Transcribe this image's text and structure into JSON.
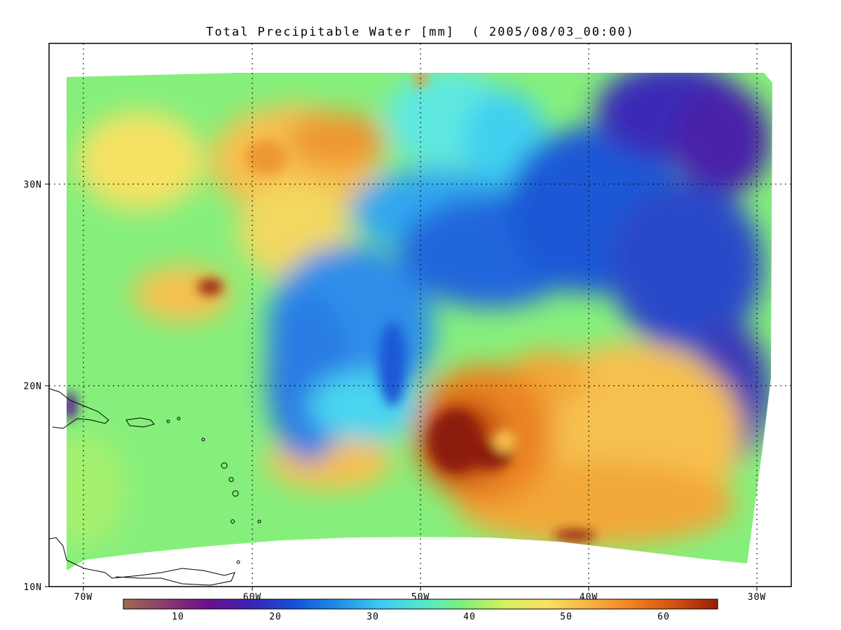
{
  "title": "Total Precipitable Water [mm]  ( 2005/08/03_00:00)",
  "map": {
    "lon_ticks": [
      "70W",
      "60W",
      "50W",
      "40W",
      "30W"
    ],
    "lat_ticks": [
      "30N",
      "20N",
      "10N"
    ]
  },
  "colorbar": {
    "ticks": [
      "10",
      "20",
      "30",
      "40",
      "50",
      "60"
    ],
    "colors": [
      "#9c6b4e",
      "#8b3a6e",
      "#6a0f8c",
      "#3a23b5",
      "#1550d8",
      "#1c8ce6",
      "#3cc8f0",
      "#52e6d0",
      "#7ef07a",
      "#d8f060",
      "#f8e060",
      "#f8b040",
      "#f08020",
      "#d05010",
      "#9a1e08"
    ]
  }
}
